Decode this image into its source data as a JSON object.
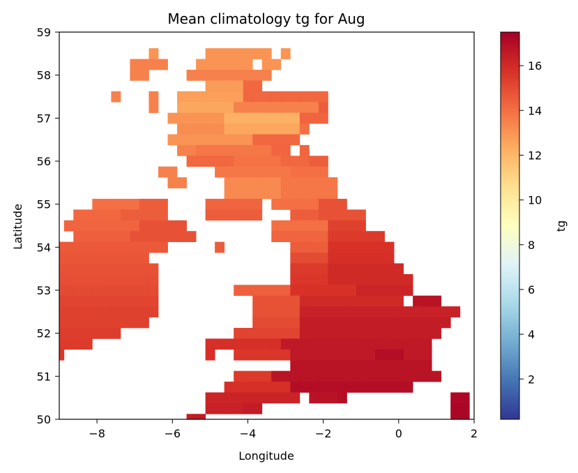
{
  "chart_data": {
    "type": "heatmap",
    "title": "Mean climatology tg for Aug",
    "xlabel": "Longitude",
    "ylabel": "Latitude",
    "xlim": [
      -9,
      2
    ],
    "ylim": [
      50,
      59
    ],
    "x_ticks": [
      -8,
      -6,
      -4,
      -2,
      0,
      2
    ],
    "x_tick_labels": [
      "−8",
      "−6",
      "−4",
      "−2",
      "0",
      "2"
    ],
    "y_ticks": [
      50,
      51,
      52,
      53,
      54,
      55,
      56,
      57,
      58,
      59
    ],
    "y_tick_labels": [
      "50",
      "51",
      "52",
      "53",
      "54",
      "55",
      "56",
      "57",
      "58",
      "59"
    ],
    "grid": false,
    "colormap": "RdYlBu_r",
    "colormap_stops": [
      "#313695",
      "#4575b4",
      "#74add1",
      "#abd9e9",
      "#e0f3f8",
      "#ffffbf",
      "#fee090",
      "#fdae61",
      "#f46d43",
      "#d73027",
      "#a50026"
    ],
    "colorbar": {
      "label": "tg",
      "range": [
        0.2,
        17.5
      ],
      "ticks": [
        2,
        4,
        6,
        8,
        10,
        12,
        14,
        16
      ],
      "tick_labels": [
        "2",
        "4",
        "6",
        "8",
        "10",
        "12",
        "14",
        "16"
      ]
    },
    "grid_cell_deg": 0.25,
    "cell_value_note": "rows list [latitude, [lon_start, lon_end, tg], ...] for cell centres",
    "rows": [
      [
        58.5,
        [
          -6.5,
          -6.5,
          13.0
        ],
        [
          -5.0,
          -3.5,
          13.0
        ],
        [
          -3.0,
          -3.0,
          13.0
        ]
      ],
      [
        58.25,
        [
          -7.0,
          -6.5,
          13.5
        ],
        [
          -6.25,
          -6.25,
          13.5
        ],
        [
          -5.25,
          -4.0,
          13.0
        ],
        [
          -3.5,
          -3.25,
          13.0
        ]
      ],
      [
        58.0,
        [
          -7.0,
          -6.75,
          13.5
        ],
        [
          -5.5,
          -3.5,
          13.5
        ]
      ],
      [
        57.75,
        [
          -5.0,
          -4.25,
          12.8
        ],
        [
          -4.0,
          -3.75,
          14.2
        ]
      ],
      [
        57.5,
        [
          -7.5,
          -7.5,
          13.5
        ],
        [
          -6.5,
          -6.5,
          13.5
        ],
        [
          -5.75,
          -4.25,
          12.7
        ],
        [
          -4.0,
          -2.0,
          14.2
        ]
      ],
      [
        57.25,
        [
          -6.5,
          -6.5,
          13.5
        ],
        [
          -5.75,
          -4.5,
          12.5
        ],
        [
          -4.25,
          -2.25,
          13.5
        ],
        [
          -2.0,
          -2.0,
          14.5
        ]
      ],
      [
        57.0,
        [
          -6.0,
          -4.75,
          13.0
        ],
        [
          -4.5,
          -2.75,
          12.2
        ],
        [
          -2.5,
          -2.0,
          14.3
        ]
      ],
      [
        56.75,
        [
          -5.75,
          -4.75,
          13.2
        ],
        [
          -4.5,
          -2.75,
          12.5
        ],
        [
          -2.5,
          -2.5,
          14.0
        ]
      ],
      [
        56.5,
        [
          -6.0,
          -4.0,
          13.0
        ],
        [
          -3.75,
          -2.75,
          14.2
        ]
      ],
      [
        56.25,
        [
          -5.75,
          -5.5,
          13.5
        ],
        [
          -5.25,
          -3.5,
          13.8
        ],
        [
          -3.25,
          -3.0,
          14.3
        ],
        [
          -2.5,
          -2.5,
          14.3
        ]
      ],
      [
        56.0,
        [
          -5.5,
          -4.5,
          14.2
        ],
        [
          -4.25,
          -3.25,
          13.9
        ],
        [
          -3.0,
          -2.5,
          14.2
        ],
        [
          -2.25,
          -2.0,
          14.5
        ]
      ],
      [
        55.75,
        [
          -6.25,
          -6.0,
          13.5
        ],
        [
          -4.75,
          -3.0,
          13.8
        ],
        [
          -2.75,
          -2.0,
          14.0
        ]
      ],
      [
        55.5,
        [
          -6.0,
          -5.75,
          13.5
        ],
        [
          -4.5,
          -3.25,
          13.3
        ],
        [
          -3.0,
          -1.75,
          13.8
        ]
      ],
      [
        55.25,
        [
          -4.5,
          -3.25,
          13.3
        ],
        [
          -3.0,
          -1.75,
          13.8
        ]
      ],
      [
        55.0,
        [
          -8.0,
          -7.0,
          14.0
        ],
        [
          -6.75,
          -6.25,
          14.5
        ],
        [
          -5.0,
          -3.75,
          14.3
        ],
        [
          -3.25,
          -2.25,
          14.0
        ],
        [
          -2.0,
          -1.5,
          14.8
        ]
      ],
      [
        54.75,
        [
          -8.5,
          -7.5,
          14.2
        ],
        [
          -7.25,
          -6.25,
          14.5
        ],
        [
          -5.0,
          -3.75,
          14.5
        ],
        [
          -2.75,
          -2.25,
          14.5
        ],
        [
          -2.0,
          -1.0,
          14.8
        ]
      ],
      [
        54.5,
        [
          -8.75,
          -7.0,
          14.3
        ],
        [
          -6.75,
          -5.75,
          14.8
        ],
        [
          -3.25,
          -2.0,
          14.0
        ],
        [
          -1.75,
          -1.0,
          15.3
        ]
      ],
      [
        54.25,
        [
          -8.5,
          -7.25,
          14.4
        ],
        [
          -7.0,
          -5.5,
          14.8
        ],
        [
          -3.25,
          -2.0,
          14.3
        ],
        [
          -1.75,
          -0.5,
          15.5
        ]
      ],
      [
        54.0,
        [
          -9.0,
          -6.25,
          14.6
        ],
        [
          -4.75,
          -4.75,
          14.5
        ],
        [
          -2.75,
          -2.0,
          14.5
        ],
        [
          -1.75,
          -0.25,
          15.7
        ]
      ],
      [
        53.75,
        [
          -9.0,
          -6.75,
          14.7
        ],
        [
          -2.75,
          -2.0,
          15.0
        ],
        [
          -1.75,
          -0.25,
          15.8
        ]
      ],
      [
        53.5,
        [
          -9.0,
          -6.5,
          14.8
        ],
        [
          -2.75,
          -2.0,
          15.5
        ],
        [
          -1.75,
          0.0,
          16.0
        ]
      ],
      [
        53.25,
        [
          -9.0,
          -6.5,
          14.9
        ],
        [
          -2.75,
          -2.0,
          15.6
        ],
        [
          -1.75,
          0.25,
          16.0
        ]
      ],
      [
        53.0,
        [
          -9.0,
          -6.5,
          15.0
        ],
        [
          -4.25,
          -3.0,
          14.4
        ],
        [
          -2.75,
          -1.25,
          15.7
        ],
        [
          -1.0,
          0.25,
          16.2
        ]
      ],
      [
        52.75,
        [
          -9.0,
          -6.5,
          15.2
        ],
        [
          -3.75,
          -2.75,
          14.8
        ],
        [
          -2.5,
          0.0,
          16.0
        ],
        [
          0.5,
          1.0,
          16.8
        ]
      ],
      [
        52.5,
        [
          -9.0,
          -6.5,
          15.3
        ],
        [
          -3.75,
          -2.75,
          14.8
        ],
        [
          -2.5,
          1.5,
          16.3
        ]
      ],
      [
        52.25,
        [
          -9.0,
          -6.75,
          15.3
        ],
        [
          -3.75,
          -2.75,
          15.0
        ],
        [
          -2.5,
          1.25,
          16.5
        ]
      ],
      [
        52.0,
        [
          -9.0,
          -7.5,
          15.4
        ],
        [
          -4.25,
          -2.75,
          15.2
        ],
        [
          -2.5,
          1.0,
          16.5
        ]
      ],
      [
        51.75,
        [
          -9.0,
          -8.25,
          15.5
        ],
        [
          -5.0,
          -3.25,
          15.8
        ],
        [
          -3.0,
          0.75,
          16.6
        ]
      ],
      [
        51.5,
        [
          -9.0,
          -9.0,
          15.6
        ],
        [
          -5.0,
          -5.0,
          15.8
        ],
        [
          -4.25,
          -3.0,
          15.6
        ],
        [
          -2.75,
          0.75,
          16.6
        ],
        [
          -0.5,
          0.0,
          17.0
        ]
      ],
      [
        51.25,
        [
          -2.75,
          0.75,
          16.8
        ]
      ],
      [
        51.0,
        [
          -4.25,
          -3.5,
          15.5
        ],
        [
          -3.25,
          1.0,
          16.8
        ]
      ],
      [
        50.75,
        [
          -4.5,
          -3.0,
          15.8
        ],
        [
          -2.75,
          0.25,
          17.0
        ]
      ],
      [
        50.5,
        [
          -5.0,
          -2.75,
          16.2
        ],
        [
          -2.25,
          -1.75,
          16.8
        ],
        [
          -1.5,
          -1.5,
          17.0
        ],
        [
          1.5,
          1.75,
          17.2
        ]
      ],
      [
        50.25,
        [
          -5.0,
          -4.25,
          16.3
        ],
        [
          -4.0,
          -3.75,
          16.5
        ],
        [
          1.5,
          1.75,
          17.3
        ]
      ],
      [
        50.0,
        [
          -5.5,
          -5.25,
          16.5
        ],
        [
          1.5,
          1.75,
          17.3
        ]
      ]
    ]
  }
}
